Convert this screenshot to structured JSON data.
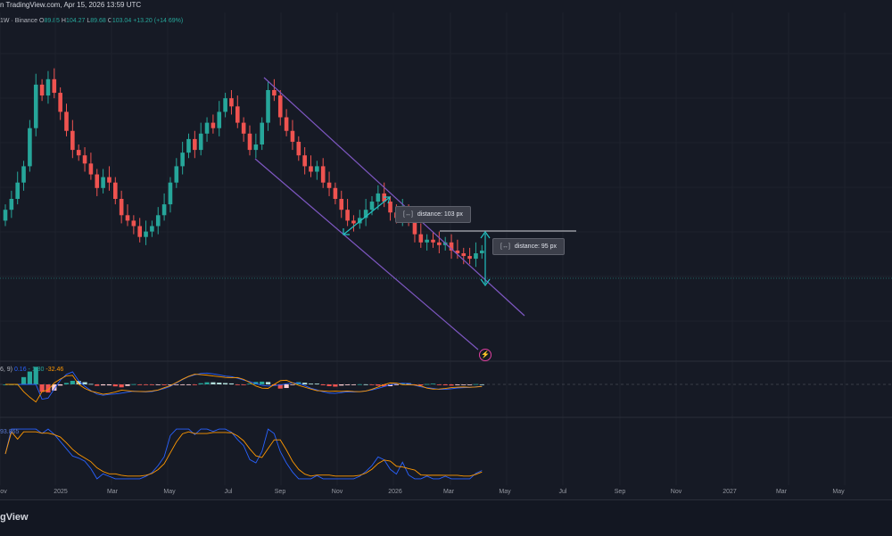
{
  "header": {
    "source_text": "n TradingView.com, Apr 15, 2026 13:59 UTC"
  },
  "legend": {
    "interval": "1W · Binance",
    "open_label": "O",
    "open": "89.85",
    "high_label": "H",
    "high": "104.27",
    "low_label": "L",
    "low": "89.68",
    "close_label": "C",
    "close": "103.04",
    "change": "+13.20 (+14.69%)"
  },
  "measure_tooltips": [
    {
      "icon": "[↔]",
      "text": "distance: 103 px"
    },
    {
      "icon": "[↔]",
      "text": "distance: 95 px"
    }
  ],
  "macd_legend": {
    "params": "6, 9)",
    "v1": "0.16",
    "v2": "- 1.30",
    "v3": "-32.46"
  },
  "stoch_legend": {
    "text": "93.865"
  },
  "time_axis": [
    "ov",
    "2025",
    "Mar",
    "May",
    "Jul",
    "Sep",
    "Nov",
    "2026",
    "Mar",
    "May",
    "Jul",
    "Sep",
    "Nov",
    "2027",
    "Mar",
    "May"
  ],
  "footer": {
    "brand": "gView"
  },
  "colors": {
    "up": "#26a69a",
    "down": "#ef5350",
    "channel": "#7e57c2",
    "measure": "#22c3c3",
    "background": "#161a25"
  },
  "chart_data": {
    "type": "candlestick",
    "interval": "1W",
    "exchange": "Binance",
    "candles_close": [
      76,
      80,
      86,
      92,
      106,
      122,
      118,
      124,
      119,
      112,
      105,
      98,
      96,
      93,
      89,
      84,
      88,
      86,
      80,
      74,
      72,
      70,
      66,
      68,
      70,
      74,
      78,
      86,
      92,
      97,
      102,
      98,
      104,
      108,
      106,
      112,
      117,
      114,
      108,
      104,
      98,
      100,
      108,
      120,
      118,
      110,
      105,
      101,
      96,
      92,
      90,
      92,
      86,
      84,
      80,
      76,
      72,
      71,
      73,
      76,
      79,
      82,
      79,
      75,
      73,
      76,
      72,
      67,
      64,
      65,
      64,
      63,
      64,
      61,
      60,
      59,
      58,
      60,
      61
    ],
    "price_range": [
      40,
      140
    ],
    "macd_range": [
      -40,
      40
    ],
    "stoch_range": [
      0,
      100
    ],
    "annotations": [
      "descending channel",
      "distance: 103 px",
      "distance: 95 px"
    ]
  }
}
